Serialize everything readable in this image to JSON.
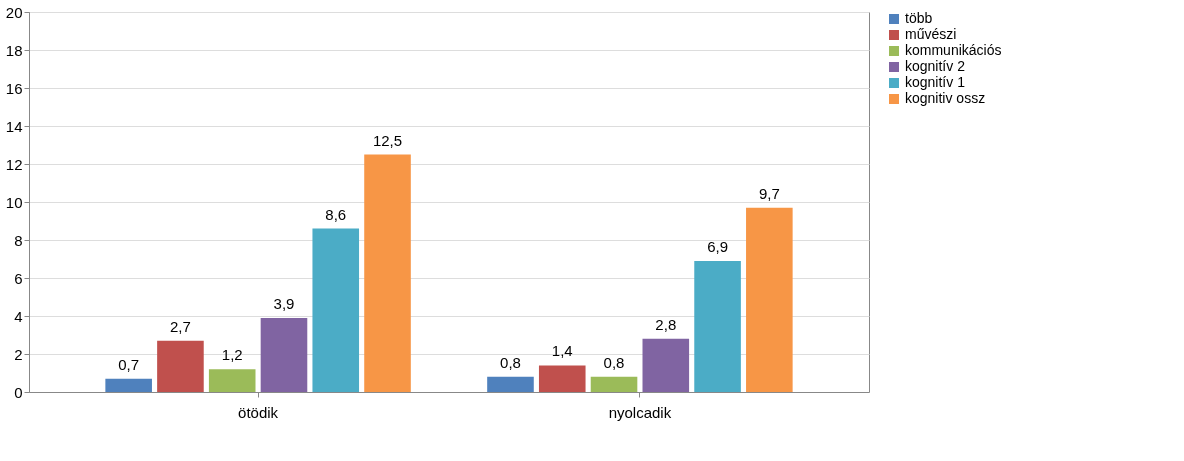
{
  "chart_data": {
    "type": "bar",
    "categories": [
      "ötödik",
      "nyolcadik"
    ],
    "series": [
      {
        "name": "több",
        "color": "#4f81bd",
        "values": [
          0.7,
          0.8
        ],
        "value_labels": [
          "0,7",
          "0,8"
        ]
      },
      {
        "name": "művészi",
        "color": "#c0504d",
        "values": [
          2.7,
          1.4
        ],
        "value_labels": [
          "2,7",
          "1,4"
        ]
      },
      {
        "name": "kommunikációs",
        "color": "#9bbb59",
        "values": [
          1.2,
          0.8
        ],
        "value_labels": [
          "1,2",
          "0,8"
        ]
      },
      {
        "name": "kognitív 2",
        "color": "#8064a2",
        "values": [
          3.9,
          2.8
        ],
        "value_labels": [
          "3,9",
          "2,8"
        ]
      },
      {
        "name": "kognitív 1",
        "color": "#4bacc6",
        "values": [
          8.6,
          6.9
        ],
        "value_labels": [
          "8,6",
          "6,9"
        ]
      },
      {
        "name": "kognitiv ossz",
        "color": "#f79646",
        "values": [
          12.5,
          9.7
        ],
        "value_labels": [
          "12,5",
          "9,7"
        ]
      }
    ],
    "ylim": [
      0,
      20
    ],
    "yticks": [
      0,
      2,
      4,
      6,
      8,
      10,
      12,
      14,
      16,
      18,
      20
    ],
    "grid": "y",
    "legend": "right"
  }
}
